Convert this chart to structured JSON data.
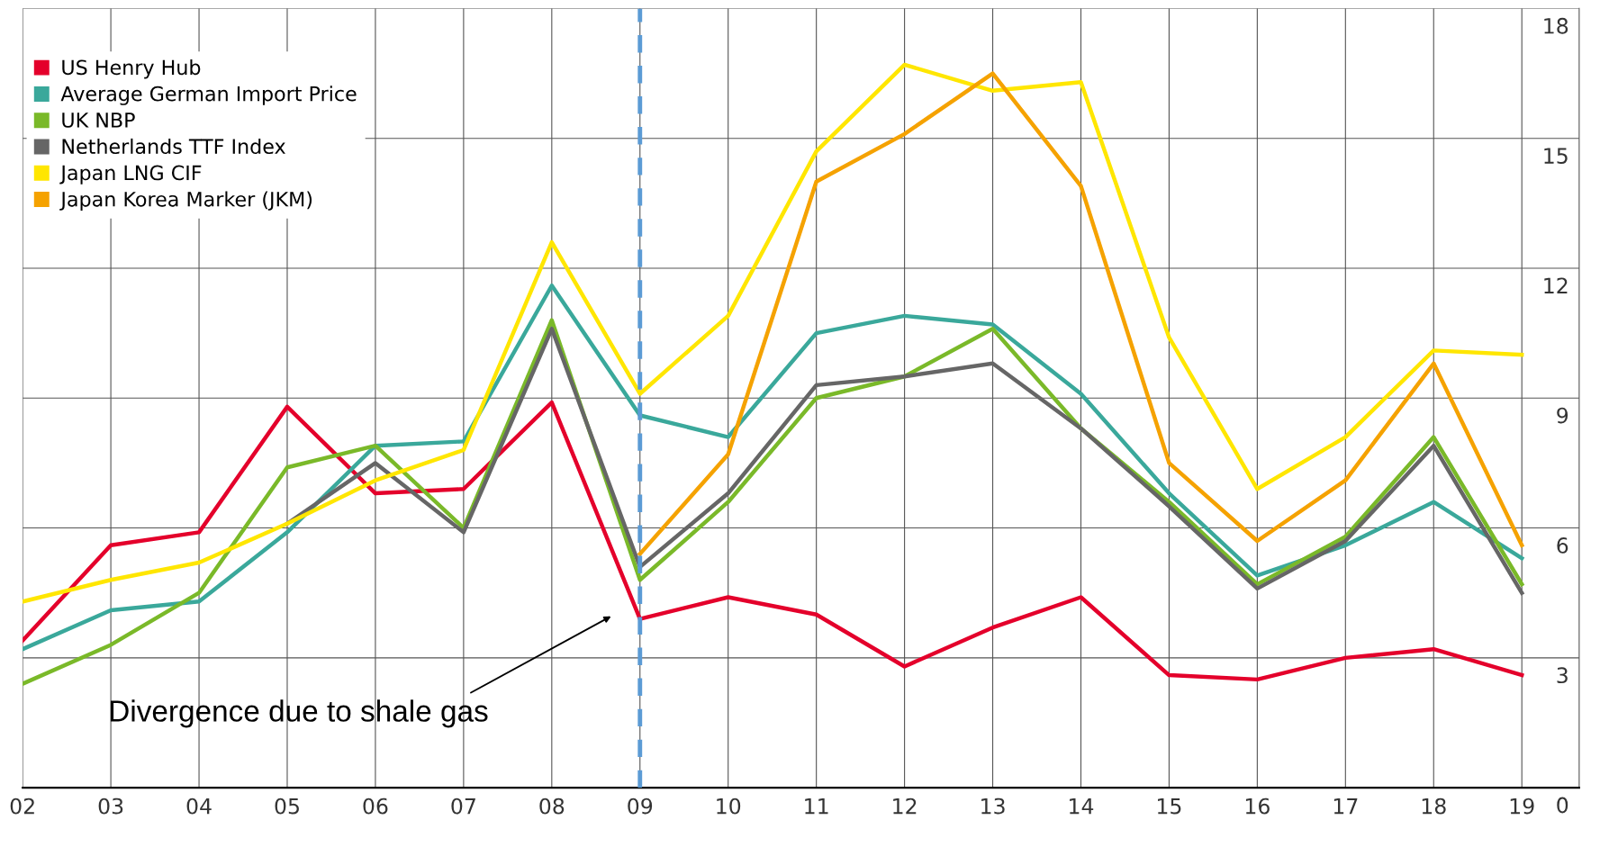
{
  "chart_data": {
    "type": "line",
    "x": [
      2002,
      2003,
      2004,
      2005,
      2006,
      2007,
      2008,
      2009,
      2010,
      2011,
      2012,
      2013,
      2014,
      2015,
      2016,
      2017,
      2018,
      2019
    ],
    "series": [
      {
        "name": "US Henry Hub",
        "color": "#e4002b",
        "values": [
          3.4,
          5.6,
          5.9,
          8.8,
          6.8,
          6.9,
          8.9,
          3.9,
          4.4,
          4.0,
          2.8,
          3.7,
          4.4,
          2.6,
          2.5,
          3.0,
          3.2,
          2.6
        ]
      },
      {
        "name": "Average German Import Price",
        "color": "#3aa89b",
        "values": [
          3.2,
          4.1,
          4.3,
          5.9,
          7.9,
          8.0,
          11.6,
          8.6,
          8.1,
          10.5,
          10.9,
          10.7,
          9.1,
          6.8,
          4.9,
          5.6,
          6.6,
          5.3
        ]
      },
      {
        "name": "UK NBP",
        "color": "#7ab929",
        "values": [
          2.4,
          3.3,
          4.5,
          7.4,
          7.9,
          6.0,
          10.8,
          4.8,
          6.6,
          9.0,
          9.5,
          10.6,
          8.3,
          6.6,
          4.7,
          5.8,
          8.1,
          4.7
        ]
      },
      {
        "name": "Netherlands TTF Index",
        "color": "#666666",
        "values": [
          null,
          null,
          null,
          6.1,
          7.5,
          5.9,
          10.6,
          5.1,
          6.8,
          9.3,
          9.5,
          9.8,
          8.3,
          6.5,
          4.6,
          5.7,
          7.9,
          4.5
        ]
      },
      {
        "name": "Japan LNG CIF",
        "color": "#ffe600",
        "values": [
          4.3,
          4.8,
          5.2,
          6.1,
          7.1,
          7.8,
          12.6,
          9.1,
          10.9,
          14.7,
          16.7,
          16.1,
          16.3,
          10.4,
          6.9,
          8.1,
          10.1,
          10.0
        ]
      },
      {
        "name": "Japan Korea Marker (JKM)",
        "color": "#f5a200",
        "values": [
          null,
          null,
          null,
          null,
          null,
          null,
          null,
          5.4,
          7.7,
          14.0,
          15.1,
          16.5,
          13.9,
          7.5,
          5.7,
          7.1,
          9.8,
          5.6
        ]
      }
    ],
    "xlim": [
      2002,
      2019.65
    ],
    "xticks": [
      {
        "value": 2002,
        "label": "02"
      },
      {
        "value": 2003,
        "label": "03"
      },
      {
        "value": 2004,
        "label": "04"
      },
      {
        "value": 2005,
        "label": "05"
      },
      {
        "value": 2006,
        "label": "06"
      },
      {
        "value": 2007,
        "label": "07"
      },
      {
        "value": 2008,
        "label": "08"
      },
      {
        "value": 2009,
        "label": "09"
      },
      {
        "value": 2010,
        "label": "10"
      },
      {
        "value": 2011,
        "label": "11"
      },
      {
        "value": 2012,
        "label": "12"
      },
      {
        "value": 2013,
        "label": "13"
      },
      {
        "value": 2014,
        "label": "14"
      },
      {
        "value": 2015,
        "label": "15"
      },
      {
        "value": 2016,
        "label": "16"
      },
      {
        "value": 2017,
        "label": "17"
      },
      {
        "value": 2018,
        "label": "18"
      },
      {
        "value": 2019,
        "label": "19"
      }
    ],
    "ylim": [
      0,
      18
    ],
    "yticks": [
      0,
      3,
      6,
      9,
      12,
      15,
      18
    ],
    "grid": true,
    "legend": "top left",
    "marker": "none",
    "line_style": "solid",
    "ref_lines": [
      {
        "axis": "x",
        "value": 2009,
        "label": null,
        "color": "#5b9bd5",
        "line_style": "dashed"
      }
    ],
    "annotations": [
      "Divergence due to shale gas"
    ]
  }
}
